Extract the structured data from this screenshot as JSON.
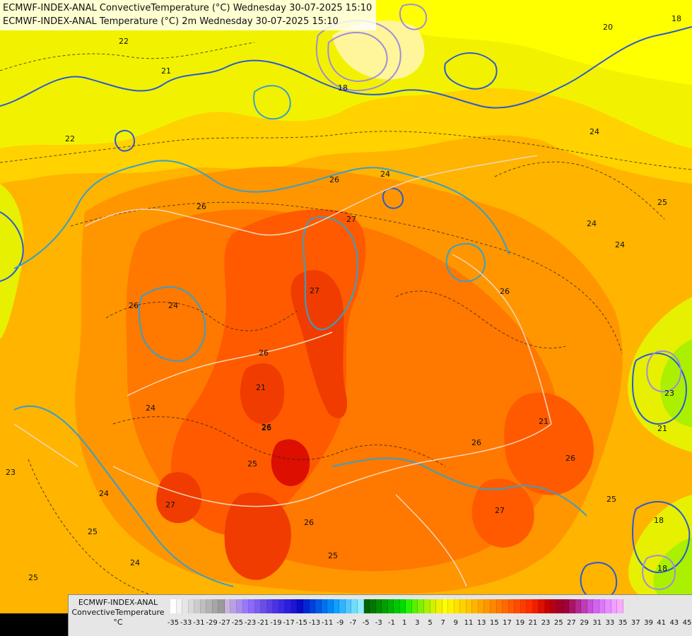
{
  "titles": {
    "line1": "ECMWF-INDEX-ANAL ConvectiveTemperature (°C) Wednesday 30-07-2025 15:10",
    "line2": "ECMWF-INDEX-ANAL Temperature (°C) 2m Wednesday 30-07-2025 15:10"
  },
  "legend": {
    "line1": "ECMWF-INDEX-ANAL",
    "line2": "ConvectiveTemperature",
    "unit": "°C",
    "tick_labels": [
      "-35",
      "-33",
      "-31",
      "-29",
      "-27",
      "-25",
      "-23",
      "-21",
      "-19",
      "-17",
      "-15",
      "-13",
      "-11",
      "-9",
      "-7",
      "-5",
      "-3",
      "-1",
      "1",
      "3",
      "5",
      "7",
      "9",
      "11",
      "13",
      "15",
      "17",
      "19",
      "21",
      "23",
      "25",
      "27",
      "29",
      "31",
      "33",
      "35",
      "37",
      "39",
      "41",
      "43",
      "45"
    ],
    "colors": [
      "#ffffff",
      "#f3f3f3",
      "#e6e6e6",
      "#d9d9d9",
      "#cccccc",
      "#bfbfbf",
      "#b3b3b3",
      "#a6a6a6",
      "#9a9a9a",
      "#c8b4dc",
      "#b9a0e6",
      "#a98cf0",
      "#9a78fa",
      "#8a6afa",
      "#7a5cf0",
      "#6a4ee6",
      "#5a40e6",
      "#4a32e6",
      "#3c28e6",
      "#2c1edc",
      "#1e14d2",
      "#0a0ac8",
      "#0028d2",
      "#0040dc",
      "#0058e6",
      "#0070f0",
      "#0088fa",
      "#10a0ff",
      "#30b4ff",
      "#50c8ff",
      "#70dcff",
      "#90ecff",
      "#006400",
      "#007800",
      "#008c00",
      "#00a000",
      "#00b400",
      "#00c800",
      "#00dc00",
      "#28f000",
      "#5af000",
      "#82f000",
      "#aaf000",
      "#d2f000",
      "#f0f000",
      "#ffff00",
      "#fff000",
      "#ffe100",
      "#ffd200",
      "#ffc300",
      "#ffb400",
      "#ffa500",
      "#ff9600",
      "#ff8700",
      "#ff7800",
      "#ff6900",
      "#ff5a00",
      "#ff4b00",
      "#ff3c00",
      "#ff2d00",
      "#f01e00",
      "#dc0f00",
      "#c80000",
      "#b40014",
      "#a00028",
      "#a0003c",
      "#aa1464",
      "#b42890",
      "#be3cb4",
      "#c850dc",
      "#d264f0",
      "#dc78fa",
      "#e68cff",
      "#f0a0ff",
      "#faaaff"
    ]
  },
  "contour_labels": [
    "20",
    "18",
    "18",
    "22",
    "21",
    "24",
    "26",
    "24",
    "22",
    "26",
    "26",
    "24",
    "26",
    "27",
    "26",
    "25",
    "24",
    "21",
    "24",
    "27",
    "24",
    "26",
    "26",
    "21",
    "27",
    "25",
    "26",
    "25",
    "23",
    "24",
    "25",
    "25",
    "24",
    "27",
    "26",
    "26",
    "25",
    "23",
    "21",
    "18",
    "18"
  ],
  "palette": {
    "yellow": "#f2f200",
    "yellow_orange": "#ffd200",
    "orange_light": "#ffb400",
    "orange": "#ff9600",
    "orange_dark": "#ff7800",
    "red_orange": "#ff5a00",
    "red": "#f03c00",
    "green_yellow": "#aaf000",
    "blue_contour": "#2a5ad2",
    "cyan_contour": "#37a0c8",
    "purple_contour": "#a08cdc"
  }
}
